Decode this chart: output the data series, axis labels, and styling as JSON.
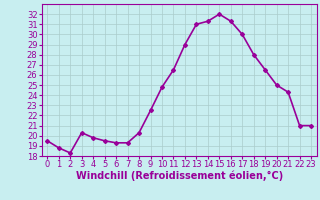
{
  "x": [
    0,
    1,
    2,
    3,
    4,
    5,
    6,
    7,
    8,
    9,
    10,
    11,
    12,
    13,
    14,
    15,
    16,
    17,
    18,
    19,
    20,
    21,
    22,
    23
  ],
  "y": [
    19.5,
    18.8,
    18.3,
    20.3,
    19.8,
    19.5,
    19.3,
    19.3,
    20.3,
    22.5,
    24.8,
    26.5,
    29.0,
    31.0,
    31.3,
    32.0,
    31.3,
    30.0,
    28.0,
    26.5,
    25.0,
    24.3,
    21.0,
    21.0
  ],
  "line_color": "#990099",
  "marker": "D",
  "marker_size": 2,
  "bg_color": "#c8eef0",
  "grid_color": "#aacccc",
  "xlabel": "Windchill (Refroidissement éolien,°C)",
  "ylabel": "",
  "ylim": [
    18,
    33
  ],
  "xlim": [
    -0.5,
    23.5
  ],
  "yticks": [
    18,
    19,
    20,
    21,
    22,
    23,
    24,
    25,
    26,
    27,
    28,
    29,
    30,
    31,
    32
  ],
  "xticks": [
    0,
    1,
    2,
    3,
    4,
    5,
    6,
    7,
    8,
    9,
    10,
    11,
    12,
    13,
    14,
    15,
    16,
    17,
    18,
    19,
    20,
    21,
    22,
    23
  ],
  "tick_color": "#990099",
  "tick_label_color": "#990099",
  "xlabel_color": "#990099",
  "xlabel_fontsize": 7,
  "tick_fontsize": 6,
  "line_width": 1.2
}
